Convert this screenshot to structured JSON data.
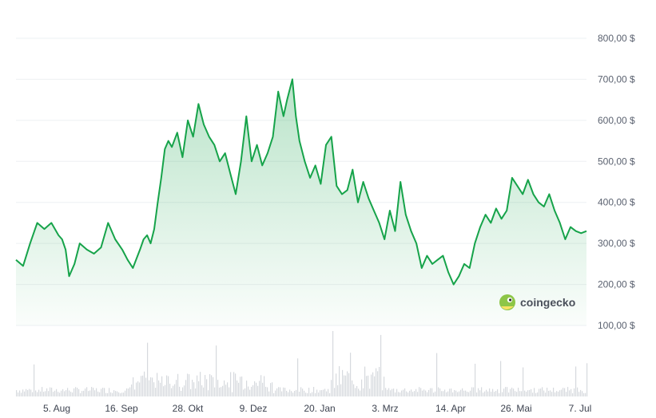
{
  "watermark": {
    "text": "coingecko"
  },
  "colors": {
    "line": "#16a34a",
    "volume": "#d6d9de",
    "grid": "#eef0f3"
  },
  "chart_data": {
    "type": "area",
    "title": "",
    "xlabel": "",
    "ylabel": "",
    "y_ticks": [
      "800,00 $",
      "700,00 $",
      "600,00 $",
      "500,00 $",
      "400,00 $",
      "300,00 $",
      "200,00 $",
      "100,00 $"
    ],
    "y_tick_values": [
      800,
      700,
      600,
      500,
      400,
      300,
      200,
      100
    ],
    "x_ticks": [
      "5. Aug",
      "16. Sep",
      "28. Okt",
      "9. Dez",
      "20. Jan",
      "3. Mrz",
      "14. Apr",
      "26. Mai",
      "7. Jul"
    ],
    "ylim": [
      50,
      850
    ],
    "grid": true,
    "series": [
      {
        "points": [
          [
            0,
            260
          ],
          [
            4,
            245
          ],
          [
            8,
            300
          ],
          [
            12,
            350
          ],
          [
            16,
            335
          ],
          [
            20,
            350
          ],
          [
            24,
            320
          ],
          [
            26,
            310
          ],
          [
            28,
            285
          ],
          [
            30,
            220
          ],
          [
            33,
            250
          ],
          [
            36,
            300
          ],
          [
            40,
            285
          ],
          [
            44,
            275
          ],
          [
            48,
            290
          ],
          [
            52,
            350
          ],
          [
            56,
            310
          ],
          [
            60,
            285
          ],
          [
            63,
            260
          ],
          [
            66,
            240
          ],
          [
            70,
            285
          ],
          [
            72,
            310
          ],
          [
            74,
            320
          ],
          [
            76,
            300
          ],
          [
            78,
            335
          ],
          [
            80,
            400
          ],
          [
            82,
            460
          ],
          [
            84,
            530
          ],
          [
            86,
            550
          ],
          [
            88,
            535
          ],
          [
            91,
            570
          ],
          [
            94,
            510
          ],
          [
            97,
            600
          ],
          [
            100,
            560
          ],
          [
            103,
            640
          ],
          [
            106,
            590
          ],
          [
            109,
            560
          ],
          [
            112,
            540
          ],
          [
            115,
            500
          ],
          [
            118,
            520
          ],
          [
            121,
            470
          ],
          [
            124,
            420
          ],
          [
            127,
            500
          ],
          [
            130,
            610
          ],
          [
            133,
            500
          ],
          [
            136,
            540
          ],
          [
            139,
            490
          ],
          [
            142,
            520
          ],
          [
            145,
            560
          ],
          [
            148,
            670
          ],
          [
            151,
            610
          ],
          [
            153,
            650
          ],
          [
            156,
            700
          ],
          [
            158,
            610
          ],
          [
            160,
            550
          ],
          [
            163,
            500
          ],
          [
            166,
            460
          ],
          [
            169,
            490
          ],
          [
            172,
            445
          ],
          [
            175,
            540
          ],
          [
            178,
            560
          ],
          [
            181,
            440
          ],
          [
            184,
            420
          ],
          [
            187,
            430
          ],
          [
            190,
            480
          ],
          [
            193,
            400
          ],
          [
            196,
            450
          ],
          [
            199,
            410
          ],
          [
            202,
            380
          ],
          [
            205,
            350
          ],
          [
            208,
            310
          ],
          [
            211,
            380
          ],
          [
            214,
            330
          ],
          [
            217,
            450
          ],
          [
            220,
            370
          ],
          [
            223,
            330
          ],
          [
            226,
            300
          ],
          [
            229,
            240
          ],
          [
            232,
            270
          ],
          [
            235,
            250
          ],
          [
            238,
            260
          ],
          [
            241,
            270
          ],
          [
            244,
            230
          ],
          [
            247,
            200
          ],
          [
            250,
            220
          ],
          [
            253,
            250
          ],
          [
            256,
            240
          ],
          [
            259,
            300
          ],
          [
            262,
            340
          ],
          [
            265,
            370
          ],
          [
            268,
            350
          ],
          [
            271,
            385
          ],
          [
            274,
            360
          ],
          [
            277,
            380
          ],
          [
            280,
            460
          ],
          [
            283,
            440
          ],
          [
            286,
            420
          ],
          [
            289,
            455
          ],
          [
            292,
            420
          ],
          [
            295,
            400
          ],
          [
            298,
            390
          ],
          [
            301,
            420
          ],
          [
            304,
            380
          ],
          [
            307,
            350
          ],
          [
            310,
            310
          ],
          [
            313,
            340
          ],
          [
            316,
            330
          ],
          [
            319,
            325
          ],
          [
            322,
            330
          ]
        ]
      }
    ]
  }
}
